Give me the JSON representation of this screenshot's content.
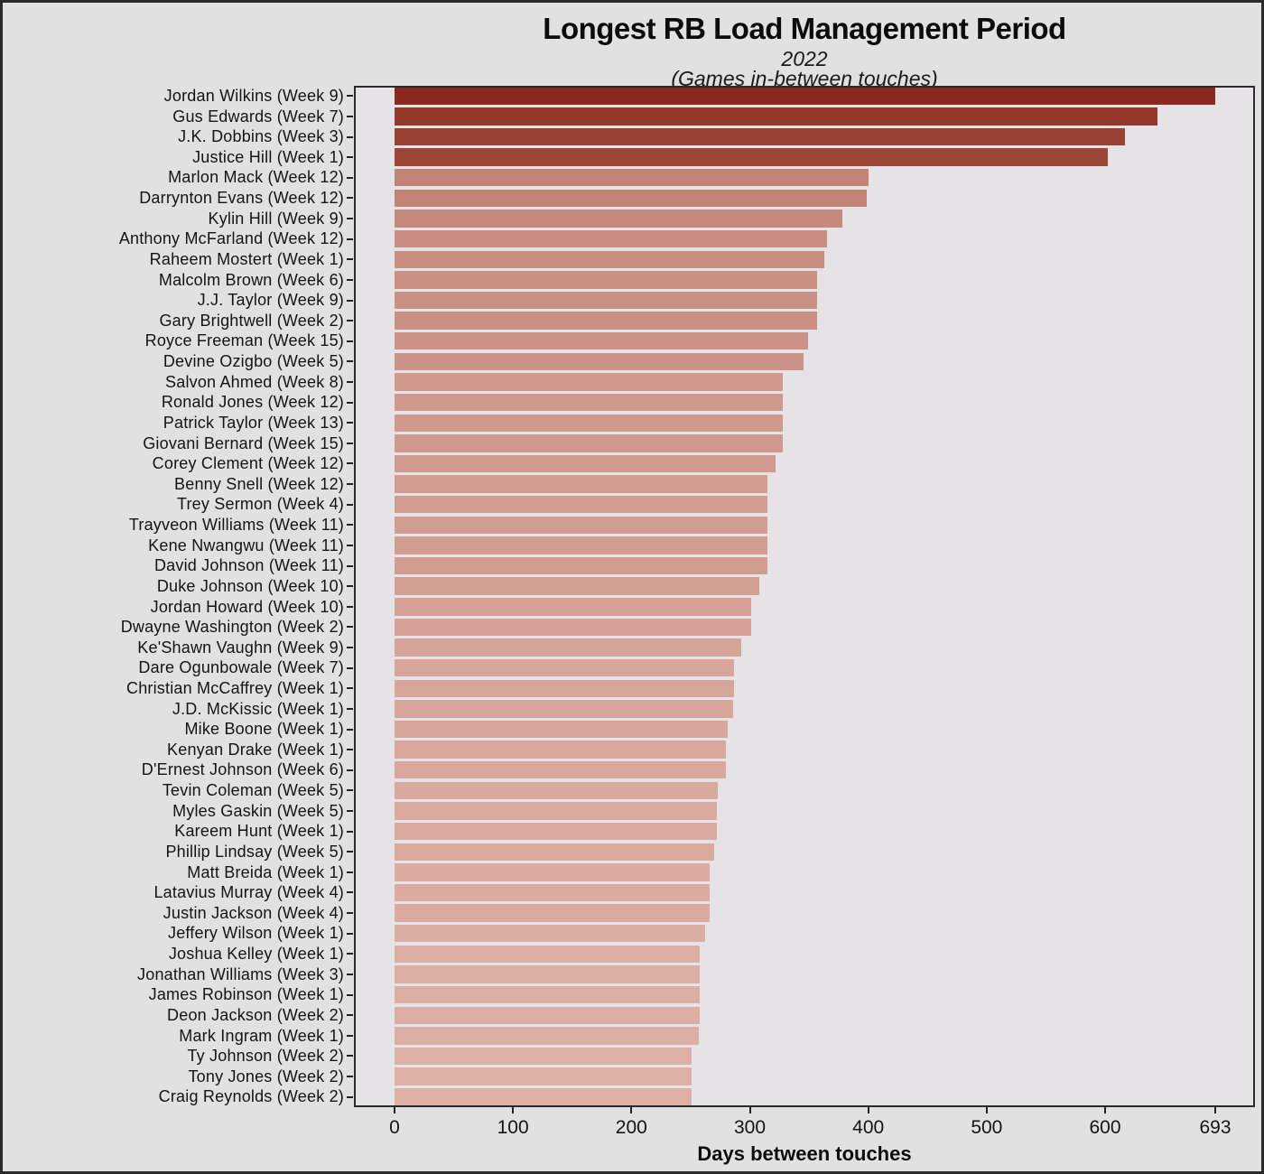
{
  "title": "Longest RB Load Management Period",
  "subtitle_year": "2022",
  "subtitle_note": "(Games in-between touches)",
  "chart_data": {
    "type": "bar",
    "orientation": "horizontal",
    "title": "Longest RB Load Management Period",
    "subtitle": "2022 (Games in-between touches)",
    "xlabel": "Days between touches",
    "ylabel": "",
    "xlim": [
      0,
      693
    ],
    "xticks": [
      0,
      100,
      200,
      300,
      400,
      500,
      600,
      693
    ],
    "xtick_labels": [
      "0",
      "100",
      "200",
      "300",
      "400",
      "500",
      "600",
      "693"
    ],
    "grid": false,
    "legend": false,
    "color_scale": {
      "low_value": 251,
      "high_value": 693,
      "low_color": "#deb0a5",
      "high_color": "#8b2a1c"
    },
    "categories": [
      "Jordan Wilkins (Week 9)",
      "Gus Edwards (Week 7)",
      "J.K. Dobbins (Week 3)",
      "Justice Hill (Week 1)",
      "Marlon Mack (Week 12)",
      "Darrynton Evans (Week 12)",
      "Kylin Hill (Week 9)",
      "Anthony McFarland (Week 12)",
      "Raheem Mostert (Week 1)",
      "Malcolm Brown (Week 6)",
      "J.J. Taylor (Week 9)",
      "Gary Brightwell (Week 2)",
      "Royce Freeman (Week 15)",
      "Devine Ozigbo (Week 5)",
      "Salvon Ahmed (Week 8)",
      "Ronald Jones (Week 12)",
      "Patrick Taylor (Week 13)",
      "Giovani Bernard (Week 15)",
      "Corey Clement (Week 12)",
      "Benny Snell (Week 12)",
      "Trey Sermon (Week 4)",
      "Trayveon Williams (Week 11)",
      "Kene Nwangwu (Week 11)",
      "David Johnson (Week 11)",
      "Duke Johnson (Week 10)",
      "Jordan Howard (Week 10)",
      "Dwayne Washington (Week 2)",
      "Ke'Shawn Vaughn (Week 9)",
      "Dare Ogunbowale (Week 7)",
      "Christian McCaffrey (Week 1)",
      "J.D. McKissic (Week 1)",
      "Mike Boone (Week 1)",
      "Kenyan Drake (Week 1)",
      "D'Ernest Johnson (Week 6)",
      "Tevin Coleman (Week 5)",
      "Myles Gaskin (Week 5)",
      "Kareem Hunt (Week 1)",
      "Phillip Lindsay (Week 5)",
      "Matt Breida (Week 1)",
      "Latavius Murray (Week 4)",
      "Justin Jackson (Week 4)",
      "Jeffery Wilson (Week 1)",
      "Joshua Kelley (Week 1)",
      "Jonathan Williams (Week 3)",
      "James Robinson (Week 1)",
      "Deon Jackson (Week 2)",
      "Mark Ingram (Week 1)",
      "Ty Johnson (Week 2)",
      "Tony Jones (Week 2)",
      "Craig Reynolds (Week 2)"
    ],
    "values": [
      693,
      644,
      617,
      602,
      400,
      399,
      378,
      365,
      363,
      357,
      357,
      357,
      349,
      345,
      328,
      328,
      328,
      328,
      322,
      315,
      315,
      315,
      315,
      315,
      308,
      301,
      301,
      293,
      287,
      287,
      286,
      281,
      280,
      280,
      273,
      272,
      272,
      270,
      266,
      266,
      266,
      262,
      258,
      258,
      258,
      258,
      257,
      251,
      251,
      251
    ]
  },
  "colors": {
    "page_background": "#e2e1e2",
    "panel_background": "#e5e3e6",
    "panel_border": "#2b2b2b",
    "text": "#141414",
    "bar_dark": "#8b2a1c",
    "bar_light": "#deb0a5"
  }
}
